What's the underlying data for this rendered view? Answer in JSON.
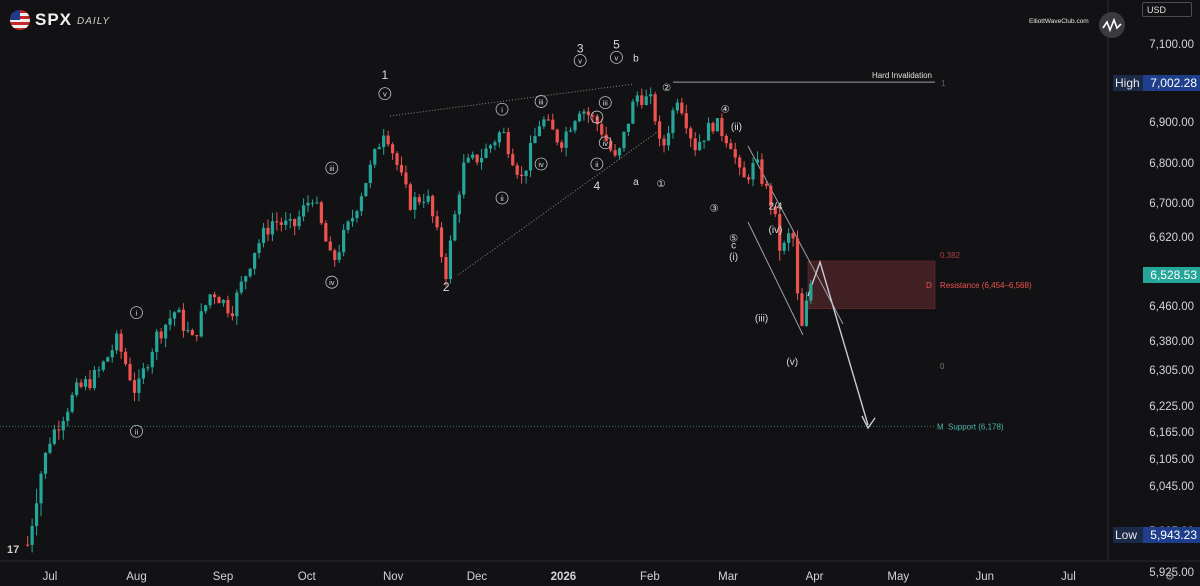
{
  "header": {
    "ticker": "SPX",
    "timeframe": "DAILY",
    "currency": "USD",
    "brand": "ElliottWaveClub.com"
  },
  "price_axis": {
    "high_label": "High",
    "high_value": "7,002.28",
    "low_label": "Low",
    "low_value": "5,943.23",
    "last_price": "6,528.53"
  },
  "colors": {
    "bull": "#26a69a",
    "bear": "#ef5350",
    "background": "#121214",
    "support": "#2e7d6e",
    "resistance_zone": "#4a2326"
  },
  "chart_data": {
    "type": "candlestick",
    "title": "",
    "xlabel": "",
    "ylabel": "",
    "y_ticks": [
      5925,
      5985,
      6045,
      6105,
      6165,
      6225,
      6305,
      6380,
      6460,
      6540,
      6620,
      6700,
      6800,
      6900,
      7100
    ],
    "y_tick_labels": [
      "5,925.00",
      "5,985.00",
      "6,045.00",
      "6,105.00",
      "6,165.00",
      "6,225.00",
      "6,305.00",
      "6,380.00",
      "6,460.00",
      "6,540.00",
      "6,620.00",
      "6,700.00",
      "6,800.00",
      "6,900.00",
      "7,100.00"
    ],
    "x_ticks": [
      {
        "x": "2025-07-01",
        "label": "Jul"
      },
      {
        "x": "2025-08-01",
        "label": "Aug"
      },
      {
        "x": "2025-09-01",
        "label": "Sep"
      },
      {
        "x": "2025-10-01",
        "label": "Oct"
      },
      {
        "x": "2025-11-01",
        "label": "Nov"
      },
      {
        "x": "2025-12-01",
        "label": "Dec"
      },
      {
        "x": "2026-01-01",
        "label": "2026"
      },
      {
        "x": "2026-02-01",
        "label": "Feb"
      },
      {
        "x": "2026-03-01",
        "label": "Mar"
      },
      {
        "x": "2026-04-01",
        "label": "Apr"
      },
      {
        "x": "2026-05-01",
        "label": "May"
      },
      {
        "x": "2026-06-01",
        "label": "Jun"
      },
      {
        "x": "2026-07-01",
        "label": "Jul"
      }
    ],
    "close_path": [
      [
        "2025-06-23",
        5965
      ],
      [
        "2025-07-01",
        6150
      ],
      [
        "2025-07-10",
        6255
      ],
      [
        "2025-07-18",
        6295
      ],
      [
        "2025-07-25",
        6380
      ],
      [
        "2025-08-01",
        6250
      ],
      [
        "2025-08-08",
        6390
      ],
      [
        "2025-08-15",
        6450
      ],
      [
        "2025-08-21",
        6380
      ],
      [
        "2025-08-28",
        6500
      ],
      [
        "2025-09-04",
        6450
      ],
      [
        "2025-09-12",
        6590
      ],
      [
        "2025-09-19",
        6660
      ],
      [
        "2025-09-26",
        6640
      ],
      [
        "2025-10-03",
        6720
      ],
      [
        "2025-10-10",
        6560
      ],
      [
        "2025-10-17",
        6660
      ],
      [
        "2025-10-24",
        6790
      ],
      [
        "2025-10-29",
        6890
      ],
      [
        "2025-11-04",
        6760
      ],
      [
        "2025-11-07",
        6700
      ],
      [
        "2025-11-13",
        6720
      ],
      [
        "2025-11-20",
        6540
      ],
      [
        "2025-11-26",
        6790
      ],
      [
        "2025-12-03",
        6820
      ],
      [
        "2025-12-10",
        6880
      ],
      [
        "2025-12-17",
        6760
      ],
      [
        "2025-12-24",
        6910
      ],
      [
        "2025-12-31",
        6850
      ],
      [
        "2026-01-07",
        6940
      ],
      [
        "2026-01-14",
        6890
      ],
      [
        "2026-01-20",
        6800
      ],
      [
        "2026-01-27",
        6970
      ],
      [
        "2026-02-02",
        6950
      ],
      [
        "2026-02-05",
        6820
      ],
      [
        "2026-02-11",
        6970
      ],
      [
        "2026-02-17",
        6840
      ],
      [
        "2026-02-24",
        6900
      ],
      [
        "2026-03-02",
        6850
      ],
      [
        "2026-03-06",
        6750
      ],
      [
        "2026-03-11",
        6800
      ],
      [
        "2026-03-17",
        6690
      ],
      [
        "2026-03-20",
        6580
      ],
      [
        "2026-03-24",
        6640
      ],
      [
        "2026-03-27",
        6390
      ],
      [
        "2026-03-31",
        6528
      ]
    ],
    "wave_labels": [
      {
        "x": "2025-10-29",
        "y": 7010,
        "label": "1"
      },
      {
        "x": "2025-10-29",
        "y": 6965,
        "label": "v"
      },
      {
        "x": "2025-11-20",
        "y": 6498,
        "label": "2"
      },
      {
        "x": "2026-01-07",
        "y": 7078,
        "label": "3"
      },
      {
        "x": "2026-01-07",
        "y": 7050,
        "label": "v"
      },
      {
        "x": "2026-01-13",
        "y": 6732,
        "label": "4"
      },
      {
        "x": "2026-01-20",
        "y": 7088,
        "label": "5"
      },
      {
        "x": "2026-01-20",
        "y": 7058,
        "label": "v"
      },
      {
        "x": "2026-01-27",
        "y": 7055,
        "label": "b"
      },
      {
        "x": "2026-01-27",
        "y": 6745,
        "label": "a"
      },
      {
        "x": "2026-02-05",
        "y": 6740,
        "label": "①"
      },
      {
        "x": "2026-02-07",
        "y": 6980,
        "label": "②"
      },
      {
        "x": "2026-02-24",
        "y": 6680,
        "label": "③"
      },
      {
        "x": "2026-02-28",
        "y": 6925,
        "label": "④"
      },
      {
        "x": "2026-03-04",
        "y": 6880,
        "label": "(ii)"
      },
      {
        "x": "2026-03-03",
        "y": 6610,
        "label": "⑤"
      },
      {
        "x": "2026-03-03",
        "y": 6595,
        "label": "c"
      },
      {
        "x": "2026-03-03",
        "y": 6570,
        "label": "(i)"
      },
      {
        "x": "2026-03-18",
        "y": 6685,
        "label": "2/4"
      },
      {
        "x": "2026-03-18",
        "y": 6630,
        "label": "(iv)"
      },
      {
        "x": "2026-03-13",
        "y": 6425,
        "label": "(iii)"
      },
      {
        "x": "2026-03-24",
        "y": 6318,
        "label": "(v)"
      },
      {
        "x": "2025-08-01",
        "y": 6438,
        "label": "i"
      },
      {
        "x": "2025-08-01",
        "y": 6160,
        "label": "ii"
      },
      {
        "x": "2025-10-10",
        "y": 6780,
        "label": "iii"
      },
      {
        "x": "2025-10-10",
        "y": 6512,
        "label": "iv"
      },
      {
        "x": "2025-12-10",
        "y": 6925,
        "label": "i"
      },
      {
        "x": "2025-12-10",
        "y": 6705,
        "label": "ii"
      },
      {
        "x": "2025-12-24",
        "y": 6945,
        "label": "iii"
      },
      {
        "x": "2025-12-24",
        "y": 6790,
        "label": "iv"
      },
      {
        "x": "2026-01-13",
        "y": 6905,
        "label": "i"
      },
      {
        "x": "2026-01-13",
        "y": 6790,
        "label": "ii"
      },
      {
        "x": "2026-01-16",
        "y": 6942,
        "label": "iii"
      },
      {
        "x": "2026-01-16",
        "y": 6842,
        "label": "iv"
      }
    ],
    "annotations": {
      "hard_invalidation": {
        "label": "Hard Invalidation",
        "y": 7002.28
      },
      "resistance": {
        "label": "Resistance (6,454–6,568)",
        "low": 6454,
        "high": 6568,
        "marker": "D"
      },
      "support": {
        "label": "Support (6,178)",
        "y": 6178,
        "marker": "M"
      },
      "fib_top": "0.382",
      "fib_bottom": "0",
      "hard_invalidation_tag": "1"
    }
  }
}
